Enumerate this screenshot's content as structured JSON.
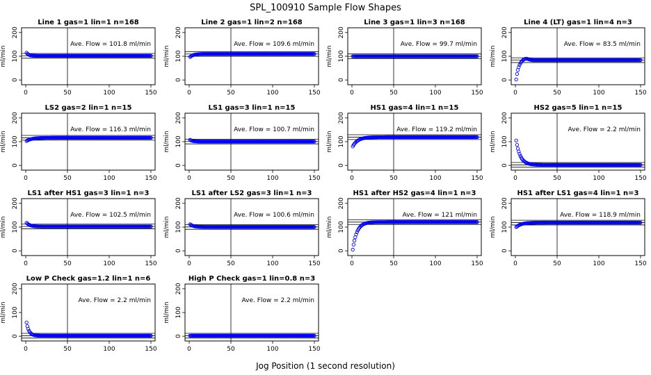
{
  "figure": {
    "title": "SPL_100910  Sample Flow Shapes",
    "xlabel": "Jog Position (1 second resolution)"
  },
  "colors": {
    "points": "#0000ee",
    "axes": "#000000",
    "background": "#ffffff"
  },
  "chart_data": [
    {
      "type": "scatter",
      "title": "Line 1 gas=1 lin=1 n=168",
      "ylabel": "ml/min",
      "annotation": "Ave. Flow =  101.8  ml/min",
      "xlim": [
        0,
        150
      ],
      "ylim": [
        -20,
        220
      ],
      "xticks": [
        0,
        50,
        100,
        150
      ],
      "yticks": [
        0,
        100,
        200
      ],
      "hlines": [
        101.8,
        91.8,
        111.8
      ],
      "vline": 50,
      "shape": {
        "start": 115,
        "plateau": 101.8,
        "tau": 2.5
      },
      "grid": false
    },
    {
      "type": "scatter",
      "title": "Line 2 gas=1 lin=2 n=168",
      "ylabel": "ml/min",
      "annotation": "Ave. Flow =  109.6  ml/min",
      "xlim": [
        0,
        150
      ],
      "ylim": [
        -20,
        220
      ],
      "xticks": [
        0,
        50,
        100,
        150
      ],
      "yticks": [
        0,
        100,
        200
      ],
      "hlines": [
        109.6,
        99.6,
        119.6
      ],
      "vline": 50,
      "shape": {
        "start": 97,
        "plateau": 109.6,
        "tau": 4
      },
      "grid": false
    },
    {
      "type": "scatter",
      "title": "Line 3 gas=1 lin=3 n=168",
      "ylabel": "ml/min",
      "annotation": "Ave. Flow =  99.7  ml/min",
      "xlim": [
        0,
        150
      ],
      "ylim": [
        -20,
        220
      ],
      "xticks": [
        0,
        50,
        100,
        150
      ],
      "yticks": [
        0,
        100,
        200
      ],
      "hlines": [
        99.7,
        89.7,
        109.7
      ],
      "vline": 50,
      "shape": {
        "start": 99.7,
        "plateau": 99.7,
        "tau": 1
      },
      "grid": false
    },
    {
      "type": "scatter",
      "title": "Line 4 (LT) gas=1 lin=4 n=3",
      "ylabel": "ml/min",
      "annotation": "Ave. Flow =  83.5  ml/min",
      "xlim": [
        0,
        150
      ],
      "ylim": [
        -20,
        220
      ],
      "xticks": [
        0,
        50,
        100,
        150
      ],
      "yticks": [
        0,
        100,
        200
      ],
      "hlines": [
        83.5,
        73.5,
        93.5
      ],
      "vline": 50,
      "shape": {
        "start": 2,
        "plateau": 83.5,
        "tau": 3,
        "overshoot": 8
      },
      "grid": false
    },
    {
      "type": "scatter",
      "title": "LS2 gas=2 lin=1 n=15",
      "ylabel": "ml/min",
      "annotation": "Ave. Flow =  116.3  ml/min",
      "xlim": [
        0,
        150
      ],
      "ylim": [
        -20,
        220
      ],
      "xticks": [
        0,
        50,
        100,
        150
      ],
      "yticks": [
        0,
        100,
        200
      ],
      "hlines": [
        116.3,
        106.3,
        126.3
      ],
      "vline": 50,
      "shape": {
        "start": 103,
        "plateau": 116.3,
        "tau": 6
      },
      "grid": false
    },
    {
      "type": "scatter",
      "title": "LS1 gas=3 lin=1 n=15",
      "ylabel": "ml/min",
      "annotation": "Ave. Flow =  100.7  ml/min",
      "xlim": [
        0,
        150
      ],
      "ylim": [
        -20,
        220
      ],
      "xticks": [
        0,
        50,
        100,
        150
      ],
      "yticks": [
        0,
        100,
        200
      ],
      "hlines": [
        100.7,
        90.7,
        110.7
      ],
      "vline": 50,
      "shape": {
        "start": 108,
        "plateau": 100.7,
        "tau": 3
      },
      "grid": false
    },
    {
      "type": "scatter",
      "title": "HS1 gas=4 lin=1 n=15",
      "ylabel": "ml/min",
      "annotation": "Ave. Flow =  119.2  ml/min",
      "xlim": [
        0,
        150
      ],
      "ylim": [
        -20,
        220
      ],
      "xticks": [
        0,
        50,
        100,
        150
      ],
      "yticks": [
        0,
        100,
        200
      ],
      "hlines": [
        119.2,
        109.2,
        129.2
      ],
      "vline": 50,
      "shape": {
        "start": 80,
        "plateau": 119.2,
        "tau": 6
      },
      "grid": false
    },
    {
      "type": "scatter",
      "title": "HS2 gas=5 lin=1 n=15",
      "ylabel": "ml/min",
      "annotation": "Ave. Flow =  2.2  ml/min",
      "xlim": [
        0,
        150
      ],
      "ylim": [
        -20,
        220
      ],
      "xticks": [
        0,
        50,
        100,
        150
      ],
      "yticks": [
        0,
        100,
        200
      ],
      "hlines": [
        2.2,
        -7.8,
        12.2
      ],
      "vline": 50,
      "shape": {
        "start": 105,
        "plateau": 2.2,
        "tau": 5
      },
      "grid": false
    },
    {
      "type": "scatter",
      "title": "LS1 after HS1 gas=3 lin=1 n=3",
      "ylabel": "ml/min",
      "annotation": "Ave. Flow =  102.5  ml/min",
      "xlim": [
        0,
        150
      ],
      "ylim": [
        -20,
        220
      ],
      "xticks": [
        0,
        50,
        100,
        150
      ],
      "yticks": [
        0,
        100,
        200
      ],
      "hlines": [
        102.5,
        92.5,
        112.5
      ],
      "vline": 50,
      "shape": {
        "start": 118,
        "plateau": 102.5,
        "tau": 4
      },
      "grid": false
    },
    {
      "type": "scatter",
      "title": "LS1 after LS2 gas=3 lin=1 n=3",
      "ylabel": "ml/min",
      "annotation": "Ave. Flow =  100.6  ml/min",
      "xlim": [
        0,
        150
      ],
      "ylim": [
        -20,
        220
      ],
      "xticks": [
        0,
        50,
        100,
        150
      ],
      "yticks": [
        0,
        100,
        200
      ],
      "hlines": [
        100.6,
        90.6,
        110.6
      ],
      "vline": 50,
      "shape": {
        "start": 112,
        "plateau": 100.6,
        "tau": 4
      },
      "grid": false
    },
    {
      "type": "scatter",
      "title": "HS1 after HS2 gas=4 lin=1 n=3",
      "ylabel": "ml/min",
      "annotation": "Ave. Flow =  121  ml/min",
      "xlim": [
        0,
        150
      ],
      "ylim": [
        -20,
        220
      ],
      "xticks": [
        0,
        50,
        100,
        150
      ],
      "yticks": [
        0,
        100,
        200
      ],
      "hlines": [
        121,
        111,
        131
      ],
      "vline": 50,
      "shape": {
        "start": 5,
        "plateau": 121,
        "tau": 5
      },
      "grid": false
    },
    {
      "type": "scatter",
      "title": "HS1 after LS1 gas=4 lin=1 n=3",
      "ylabel": "ml/min",
      "annotation": "Ave. Flow =  118.9  ml/min",
      "xlim": [
        0,
        150
      ],
      "ylim": [
        -20,
        220
      ],
      "xticks": [
        0,
        50,
        100,
        150
      ],
      "yticks": [
        0,
        100,
        200
      ],
      "hlines": [
        118.9,
        108.9,
        128.9
      ],
      "vline": 50,
      "shape": {
        "start": 100,
        "plateau": 118.9,
        "tau": 6
      },
      "grid": false
    },
    {
      "type": "scatter",
      "title": "Low P Check gas=1.2 lin=1 n=6",
      "ylabel": "ml/min",
      "annotation": "Ave. Flow =  2.2  ml/min",
      "xlim": [
        0,
        150
      ],
      "ylim": [
        -20,
        220
      ],
      "xticks": [
        0,
        50,
        100,
        150
      ],
      "yticks": [
        0,
        100,
        200
      ],
      "hlines": [
        2.2,
        -7.8,
        12.2
      ],
      "vline": 50,
      "shape": {
        "start": 58,
        "plateau": 2.2,
        "tau": 3
      },
      "grid": false
    },
    {
      "type": "scatter",
      "title": "High P Check gas=1 lin=0.8 n=3",
      "ylabel": "ml/min",
      "annotation": "Ave. Flow =  2.2  ml/min",
      "xlim": [
        0,
        150
      ],
      "ylim": [
        -20,
        220
      ],
      "xticks": [
        0,
        50,
        100,
        150
      ],
      "yticks": [
        0,
        100,
        200
      ],
      "hlines": [
        2.2,
        -7.8,
        12.2
      ],
      "vline": 50,
      "shape": {
        "start": 2.2,
        "plateau": 2.2,
        "tau": 1
      },
      "grid": false
    }
  ]
}
